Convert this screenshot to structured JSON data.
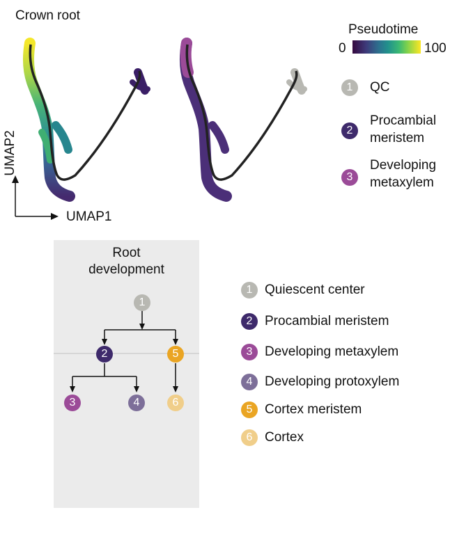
{
  "header": {
    "title": "Crown root"
  },
  "pseudotime": {
    "title": "Pseudotime",
    "min_label": "0",
    "max_label": "100",
    "colors": [
      "#35093f",
      "#3e3a7a",
      "#2d6f8e",
      "#21918c",
      "#3bb873",
      "#7ed14d",
      "#fde725"
    ]
  },
  "axes": {
    "x_label": "UMAP1",
    "y_label": "UMAP2"
  },
  "cluster_legend": [
    {
      "number": "1",
      "label": "QC",
      "color": "#b8b8b2"
    },
    {
      "number": "2",
      "label_line1": "Procambial",
      "label_line2": "meristem",
      "color": "#3e2a6b"
    },
    {
      "number": "3",
      "label_line1": "Developing",
      "label_line2": "metaxylem",
      "color": "#9b4b98"
    }
  ],
  "development": {
    "title_line1": "Root",
    "title_line2": "development",
    "nodes": [
      {
        "number": "1",
        "color": "#b8b8b2"
      },
      {
        "number": "2",
        "color": "#3e2a6b"
      },
      {
        "number": "5",
        "color": "#eaa523"
      },
      {
        "number": "3",
        "color": "#9b4b98"
      },
      {
        "number": "4",
        "color": "#7d6f99"
      },
      {
        "number": "6",
        "color": "#f0ce8a"
      }
    ]
  },
  "celltype_legend": [
    {
      "number": "1",
      "label": "Quiescent center",
      "color": "#b8b8b2"
    },
    {
      "number": "2",
      "label": "Procambial meristem",
      "color": "#3e2a6b"
    },
    {
      "number": "3",
      "label": "Developing metaxylem",
      "color": "#9b4b98"
    },
    {
      "number": "4",
      "label": "Developing protoxylem",
      "color": "#7d6f99"
    },
    {
      "number": "5",
      "label": "Cortex meristem",
      "color": "#eaa523"
    },
    {
      "number": "6",
      "label": "Cortex",
      "color": "#f0ce8a"
    }
  ]
}
